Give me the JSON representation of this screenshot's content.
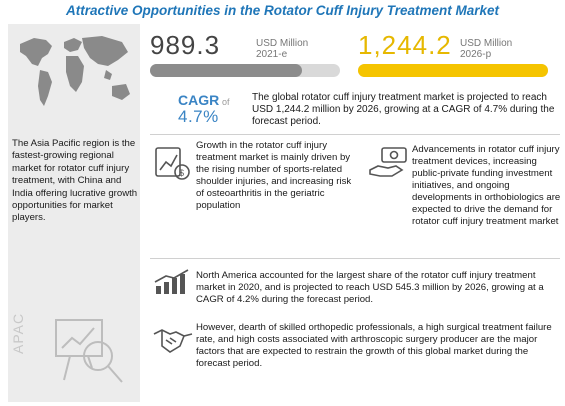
{
  "title": "Attractive Opportunities in the Rotator Cuff Injury Treatment Market",
  "stat_2021": {
    "value": "989.3",
    "unit": "USD Million",
    "year": "2021-e",
    "fill": 0.8,
    "color": "#8c8c8c"
  },
  "stat_2026": {
    "value": "1,244.2",
    "unit": "USD Million",
    "year": "2026-p",
    "fill": 1.0,
    "color": "#f5c400"
  },
  "cagr": {
    "label": "CAGR",
    "of": "of",
    "value": "4.7%"
  },
  "summary": "The global rotator cuff injury treatment market is projected to reach USD 1,244.2 million by 2026, growing at a CAGR of 4.7% during the forecast period.",
  "apac": {
    "text": "The Asia Pacific region is the fastest-growing regional market for rotator cuff injury treatment, with China and India offering lucrative growth opportunities for market players.",
    "label": "APAC"
  },
  "growth_text": "Growth in the rotator cuff injury treatment market is mainly driven by the rising number of sports-related shoulder injuries, and increasing risk of osteoarthritis in the geriatric population",
  "advancements_text": "Advancements in rotator cuff injury treatment devices, increasing public-private funding investment initiatives, and ongoing developments in orthobiologics are expected to drive the demand for rotator cuff injury treatment market",
  "north_america_text": "North America accounted for the largest share of the rotator cuff injury treatment market in 2020, and is projected to reach USD 545.3 million by 2026, growing at a CAGR of 4.2% during the forecast period.",
  "restraint_text": "However, dearth of skilled orthopedic professionals, a high surgical treatment failure rate, and high costs associated with arthroscopic surgery producer are the major factors that are expected to restrain the growth of this global market during the forecast period.",
  "icons": [
    "world-map-icon",
    "growth-chart-icon",
    "money-hand-icon",
    "growth-bars-icon",
    "handshake-icon",
    "apac-chart-icon"
  ],
  "colors": {
    "title": "#1f76b8",
    "accent_blue": "#3a84c4",
    "gold": "#f5c400",
    "gray": "#8c8c8c"
  }
}
